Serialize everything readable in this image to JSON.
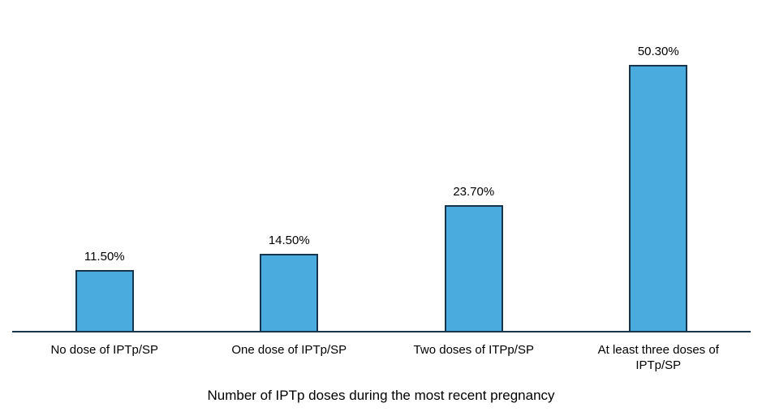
{
  "chart_data": {
    "type": "bar",
    "categories": [
      "No dose of IPTp/SP",
      "One dose of IPTp/SP",
      "Two doses of ITPp/SP",
      "At least three doses of IPTp/SP"
    ],
    "values": [
      11.5,
      14.5,
      23.7,
      50.3
    ],
    "value_labels": [
      "11.50%",
      "14.50%",
      "23.70%",
      "50.30%"
    ],
    "title": "",
    "xlabel": "Number of IPTp doses during the most recent pregnancy",
    "ylabel": "",
    "ylim": [
      0,
      55
    ],
    "grid": false,
    "legend": false,
    "y_axis_visible": false,
    "bar_fill_color": "#4AACDE",
    "bar_border_color": "#17364D",
    "axis_line_color": "#17364D",
    "text_color": "#000000"
  }
}
